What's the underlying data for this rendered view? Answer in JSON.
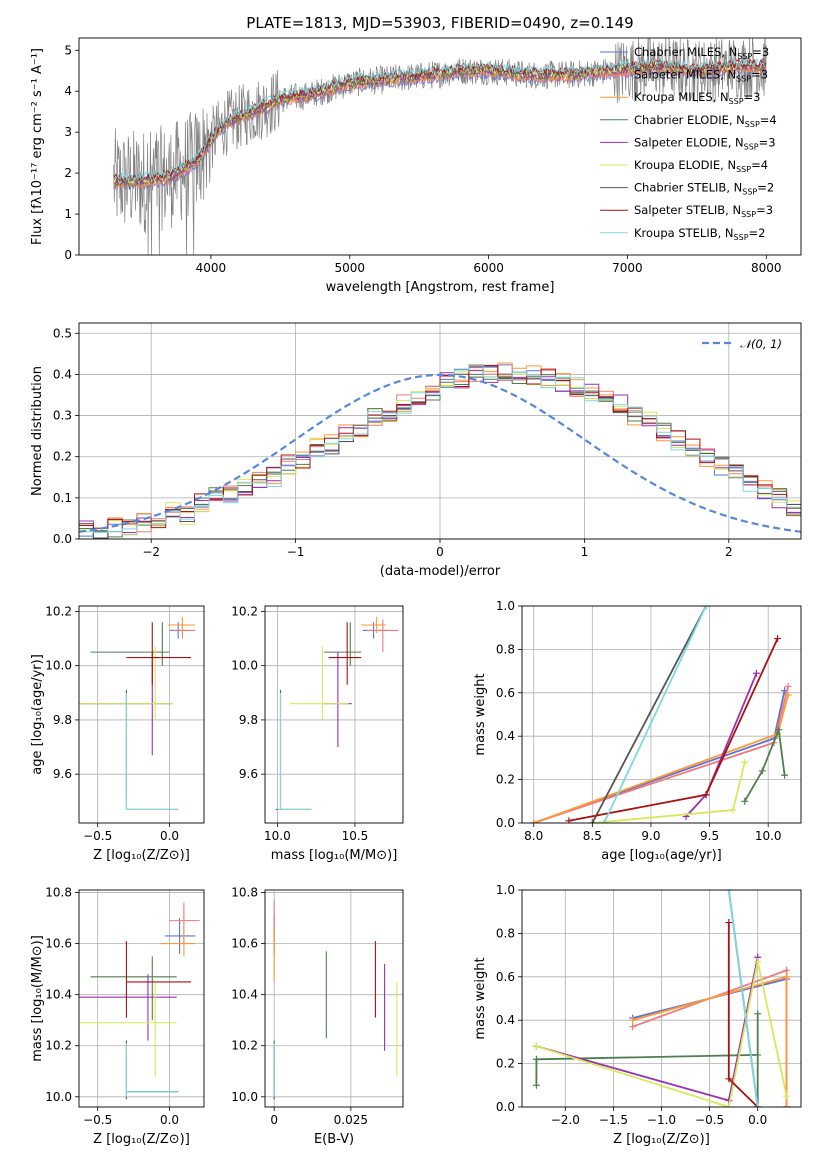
{
  "figure_title": "PLATE=1813, MJD=53903, FIBERID=0490, z=0.149",
  "colors": {
    "chab_miles": "#5b74d6",
    "salp_miles": "#f07a7a",
    "krou_miles": "#ff9933",
    "chab_elodie": "#4f7f4f",
    "salp_elodie": "#9b30b0",
    "krou_elodie": "#d9e85a",
    "chab_stelib": "#555555",
    "salp_stelib": "#aa1111",
    "krou_stelib": "#7fd8e0",
    "spectrum_data": "#808080",
    "gaussian": "#5588dd"
  },
  "chart_data": [
    {
      "id": "spectrum",
      "type": "line",
      "title": "PLATE=1813, MJD=53903, FIBERID=0490, z=0.149",
      "xlabel": "wavelength [Angstrom, rest frame]",
      "ylabel": "Flux [fλ10⁻¹⁷ erg cm⁻² s⁻¹ A⁻¹]",
      "xlim": [
        3050,
        8250
      ],
      "ylim": [
        0,
        5.3
      ],
      "xticks": [
        4000,
        5000,
        6000,
        7000,
        8000
      ],
      "yticks": [
        0,
        1,
        2,
        3,
        4,
        5
      ],
      "grid": false,
      "legend_position": "top-right",
      "continuum": {
        "x": [
          3300,
          3500,
          3700,
          3900,
          4000,
          4100,
          4300,
          4500,
          4700,
          5000,
          5300,
          5600,
          5800,
          6000,
          6300,
          6600,
          6900,
          7200,
          7500,
          7800,
          8000
        ],
        "y": [
          1.8,
          1.8,
          1.9,
          2.3,
          2.8,
          3.2,
          3.5,
          3.8,
          3.9,
          4.2,
          4.3,
          4.4,
          4.5,
          4.5,
          4.4,
          4.4,
          4.5,
          4.6,
          4.5,
          4.6,
          4.6
        ]
      },
      "series": [
        {
          "name": "Chabrier MILES, N",
          "sub": "SSP",
          "eq": "=3",
          "color_key": "chab_miles"
        },
        {
          "name": "Salpeter MILES, N",
          "sub": "SSP",
          "eq": "=3",
          "color_key": "salp_miles"
        },
        {
          "name": "Kroupa MILES, N",
          "sub": "SSP",
          "eq": "=3",
          "color_key": "krou_miles"
        },
        {
          "name": "Chabrier ELODIE, N",
          "sub": "SSP",
          "eq": "=4",
          "color_key": "chab_elodie"
        },
        {
          "name": "Salpeter ELODIE, N",
          "sub": "SSP",
          "eq": "=3",
          "color_key": "salp_elodie"
        },
        {
          "name": "Kroupa ELODIE, N",
          "sub": "SSP",
          "eq": "=4",
          "color_key": "krou_elodie"
        },
        {
          "name": "Chabrier STELIB, N",
          "sub": "SSP",
          "eq": "=2",
          "color_key": "chab_stelib"
        },
        {
          "name": "Salpeter STELIB, N",
          "sub": "SSP",
          "eq": "=3",
          "color_key": "salp_stelib"
        },
        {
          "name": "Kroupa STELIB, N",
          "sub": "SSP",
          "eq": "=2",
          "color_key": "krou_stelib"
        }
      ]
    },
    {
      "id": "residuals",
      "type": "line",
      "xlabel": "(data-model)/error",
      "ylabel": "Normed distribution",
      "xlim": [
        -2.5,
        2.5
      ],
      "ylim": [
        0,
        0.525
      ],
      "xticks": [
        -2,
        -1,
        0,
        1,
        2
      ],
      "yticks": [
        0,
        0.1,
        0.2,
        0.3,
        0.4,
        0.5
      ],
      "grid": true,
      "legend_position": "top-right",
      "gaussian_label": "𝒩(0, 1)",
      "bin_width": 0.1,
      "bin_start": -2.5,
      "hist_reference": [
        0.02,
        0.02,
        0.03,
        0.03,
        0.04,
        0.05,
        0.07,
        0.06,
        0.09,
        0.1,
        0.11,
        0.13,
        0.14,
        0.15,
        0.18,
        0.19,
        0.22,
        0.23,
        0.26,
        0.27,
        0.3,
        0.31,
        0.33,
        0.34,
        0.36,
        0.38,
        0.39,
        0.4,
        0.4,
        0.41,
        0.4,
        0.4,
        0.39,
        0.38,
        0.37,
        0.36,
        0.34,
        0.33,
        0.3,
        0.29,
        0.26,
        0.24,
        0.22,
        0.2,
        0.18,
        0.16,
        0.14,
        0.12,
        0.1,
        0.08
      ]
    },
    {
      "id": "age_vs_Z",
      "type": "scatter",
      "xlabel": "Z [log₁₀(Z/Z⊙)]",
      "ylabel": "age  [log₁₀(age/yr)]",
      "xlim": [
        -0.63,
        0.24
      ],
      "ylim": [
        9.42,
        10.22
      ],
      "xticks": [
        -0.5,
        0.0
      ],
      "yticks": [
        9.6,
        9.8,
        10.0,
        10.2
      ],
      "grid": true,
      "points": [
        {
          "c": "chab_miles",
          "x": 0.06,
          "y": 10.13,
          "xe": [
            0.0,
            0.12
          ],
          "ye": [
            10.1,
            10.16
          ]
        },
        {
          "c": "salp_miles",
          "x": 0.09,
          "y": 10.13,
          "xe": [
            0.02,
            0.18
          ],
          "ye": [
            10.1,
            10.17
          ]
        },
        {
          "c": "krou_miles",
          "x": 0.09,
          "y": 10.15,
          "xe": [
            -0.01,
            0.18
          ],
          "ye": [
            10.12,
            10.18
          ]
        },
        {
          "c": "chab_elodie",
          "x": -0.05,
          "y": 10.05,
          "xe": [
            -0.55,
            0.0
          ],
          "ye": [
            10.0,
            10.16
          ]
        },
        {
          "c": "salp_elodie",
          "x": -0.12,
          "y": 9.86,
          "xe": [
            -0.63,
            0.02
          ],
          "ye": [
            9.67,
            10.05
          ]
        },
        {
          "c": "krou_elodie",
          "x": -0.1,
          "y": 9.86,
          "xe": [
            -0.63,
            0.02
          ],
          "ye": [
            9.8,
            10.07
          ]
        },
        {
          "c": "chab_stelib",
          "x": -0.3,
          "y": 9.47,
          "xe": [
            -0.3,
            0.06
          ],
          "ye": [
            9.47,
            9.91
          ]
        },
        {
          "c": "salp_stelib",
          "x": -0.12,
          "y": 10.03,
          "xe": [
            -0.3,
            0.15
          ],
          "ye": [
            9.93,
            10.16
          ]
        },
        {
          "c": "krou_stelib",
          "x": -0.3,
          "y": 9.47,
          "xe": [
            -0.3,
            0.06
          ],
          "ye": [
            9.47,
            9.9
          ]
        }
      ]
    },
    {
      "id": "age_vs_mass",
      "type": "scatter",
      "xlabel": "mass [log₁₀(M/M⊙)]",
      "ylabel": "",
      "xlim": [
        9.92,
        10.81
      ],
      "ylim": [
        9.42,
        10.22
      ],
      "xticks": [
        10.0,
        10.5
      ],
      "yticks": [
        9.6,
        9.8,
        10.0,
        10.2
      ],
      "grid": true,
      "points": [
        {
          "c": "chab_miles",
          "x": 10.62,
          "y": 10.13,
          "xe": [
            10.55,
            10.72
          ],
          "ye": [
            10.1,
            10.16
          ]
        },
        {
          "c": "salp_miles",
          "x": 10.68,
          "y": 10.13,
          "xe": [
            10.58,
            10.78
          ],
          "ye": [
            10.05,
            10.17
          ]
        },
        {
          "c": "krou_miles",
          "x": 10.64,
          "y": 10.15,
          "xe": [
            10.54,
            10.7
          ],
          "ye": [
            10.12,
            10.18
          ]
        },
        {
          "c": "chab_elodie",
          "x": 10.47,
          "y": 10.05,
          "xe": [
            10.3,
            10.54
          ],
          "ye": [
            10.0,
            10.16
          ]
        },
        {
          "c": "salp_elodie",
          "x": 10.39,
          "y": 9.86,
          "xe": [
            10.3,
            10.48
          ],
          "ye": [
            9.7,
            10.05
          ]
        },
        {
          "c": "krou_elodie",
          "x": 10.29,
          "y": 9.86,
          "xe": [
            10.08,
            10.46
          ],
          "ye": [
            9.8,
            10.07
          ]
        },
        {
          "c": "chab_stelib",
          "x": 10.02,
          "y": 9.47,
          "xe": [
            9.99,
            10.22
          ],
          "ye": [
            9.47,
            9.91
          ]
        },
        {
          "c": "salp_stelib",
          "x": 10.45,
          "y": 10.03,
          "xe": [
            10.33,
            10.54
          ],
          "ye": [
            9.93,
            10.16
          ]
        },
        {
          "c": "krou_stelib",
          "x": 10.02,
          "y": 9.47,
          "xe": [
            10.0,
            10.22
          ],
          "ye": [
            9.47,
            9.9
          ]
        }
      ]
    },
    {
      "id": "weight_vs_age",
      "type": "line",
      "xlabel": "age  [log₁₀(age/yr)]",
      "ylabel": "mass weight",
      "xlim": [
        7.9,
        10.28
      ],
      "ylim": [
        0,
        1.0
      ],
      "xticks": [
        8.0,
        8.5,
        9.0,
        9.5,
        10.0
      ],
      "yticks": [
        0.0,
        0.2,
        0.4,
        0.6,
        0.8,
        1.0
      ],
      "grid": true,
      "series": [
        {
          "c": "chab_miles",
          "x": [
            8.0,
            10.05,
            10.14
          ],
          "y": [
            0.0,
            0.39,
            0.61
          ]
        },
        {
          "c": "salp_miles",
          "x": [
            8.0,
            10.05,
            10.17
          ],
          "y": [
            0.0,
            0.37,
            0.63
          ]
        },
        {
          "c": "krou_miles",
          "x": [
            8.0,
            10.08,
            10.17
          ],
          "y": [
            0.0,
            0.41,
            0.59
          ]
        },
        {
          "c": "chab_elodie",
          "x": [
            9.8,
            9.95,
            10.09,
            10.14
          ],
          "y": [
            0.1,
            0.24,
            0.43,
            0.22
          ]
        },
        {
          "c": "salp_elodie",
          "x": [
            9.3,
            9.47,
            9.9
          ],
          "y": [
            0.03,
            0.13,
            0.69
          ]
        },
        {
          "c": "krou_elodie",
          "x": [
            8.5,
            9.7,
            9.8
          ],
          "y": [
            0.0,
            0.06,
            0.28
          ]
        },
        {
          "c": "chab_stelib",
          "x": [
            8.5,
            9.47
          ],
          "y": [
            0.0,
            1.0
          ]
        },
        {
          "c": "salp_stelib",
          "x": [
            8.3,
            9.47,
            10.08
          ],
          "y": [
            0.01,
            0.13,
            0.85
          ]
        },
        {
          "c": "krou_stelib",
          "x": [
            8.6,
            9.47
          ],
          "y": [
            0.0,
            1.0
          ]
        }
      ]
    },
    {
      "id": "mass_vs_Z",
      "type": "scatter",
      "xlabel": "Z [log₁₀(Z/Z⊙)]",
      "ylabel": "mass [log₁₀(M/M⊙)]",
      "xlim": [
        -0.63,
        0.24
      ],
      "ylim": [
        9.96,
        10.81
      ],
      "xticks": [
        -0.5,
        0.0
      ],
      "yticks": [
        10.0,
        10.2,
        10.4,
        10.6,
        10.8
      ],
      "grid": true,
      "points": [
        {
          "c": "chab_miles",
          "x": 0.07,
          "y": 10.63,
          "xe": [
            -0.03,
            0.18
          ],
          "ye": [
            10.56,
            10.7
          ]
        },
        {
          "c": "salp_miles",
          "x": 0.1,
          "y": 10.69,
          "xe": [
            0.0,
            0.21
          ],
          "ye": [
            10.6,
            10.76
          ]
        },
        {
          "c": "krou_miles",
          "x": 0.1,
          "y": 10.6,
          "xe": [
            -0.06,
            0.18
          ],
          "ye": [
            10.55,
            10.66
          ]
        },
        {
          "c": "chab_elodie",
          "x": -0.12,
          "y": 10.47,
          "xe": [
            -0.55,
            0.05
          ],
          "ye": [
            10.3,
            10.55
          ]
        },
        {
          "c": "salp_elodie",
          "x": -0.15,
          "y": 10.39,
          "xe": [
            -0.63,
            0.05
          ],
          "ye": [
            10.22,
            10.48
          ]
        },
        {
          "c": "krou_elodie",
          "x": -0.1,
          "y": 10.29,
          "xe": [
            -0.63,
            0.05
          ],
          "ye": [
            10.08,
            10.45
          ]
        },
        {
          "c": "chab_stelib",
          "x": -0.3,
          "y": 10.02,
          "xe": [
            -0.3,
            0.06
          ],
          "ye": [
            9.99,
            10.22
          ]
        },
        {
          "c": "salp_stelib",
          "x": -0.3,
          "y": 10.45,
          "xe": [
            -0.3,
            0.15
          ],
          "ye": [
            10.31,
            10.61
          ]
        },
        {
          "c": "krou_stelib",
          "x": -0.3,
          "y": 10.02,
          "xe": [
            -0.3,
            0.06
          ],
          "ye": [
            10.0,
            10.21
          ]
        }
      ]
    },
    {
      "id": "mass_vs_EBV",
      "type": "scatter",
      "xlabel": "E(B-V)",
      "ylabel": "",
      "xlim": [
        -0.003,
        0.042
      ],
      "ylim": [
        9.96,
        10.81
      ],
      "xticks": [
        0.0,
        0.025
      ],
      "yticks": [
        10.0,
        10.2,
        10.4,
        10.6,
        10.8
      ],
      "grid": true,
      "points": [
        {
          "c": "chab_miles",
          "x": 0.0,
          "y": 10.63,
          "xe": [
            0.0,
            0.0
          ],
          "ye": [
            10.56,
            10.7
          ]
        },
        {
          "c": "salp_miles",
          "x": 0.0,
          "y": 10.69,
          "xe": [
            0.0,
            0.0
          ],
          "ye": [
            10.58,
            10.77
          ]
        },
        {
          "c": "krou_miles",
          "x": 0.0,
          "y": 10.6,
          "xe": [
            0.0,
            0.0
          ],
          "ye": [
            10.45,
            10.66
          ]
        },
        {
          "c": "chab_elodie",
          "x": 0.017,
          "y": 10.4,
          "xe": [
            0.017,
            0.017
          ],
          "ye": [
            10.23,
            10.57
          ]
        },
        {
          "c": "salp_elodie",
          "x": 0.036,
          "y": 10.35,
          "xe": [
            0.036,
            0.036
          ],
          "ye": [
            10.18,
            10.52
          ]
        },
        {
          "c": "krou_elodie",
          "x": 0.04,
          "y": 10.27,
          "xe": [
            0.04,
            0.04
          ],
          "ye": [
            10.08,
            10.45
          ]
        },
        {
          "c": "chab_stelib",
          "x": 0.0,
          "y": 10.1,
          "xe": [
            0.0,
            0.0
          ],
          "ye": [
            9.99,
            10.22
          ]
        },
        {
          "c": "salp_stelib",
          "x": 0.033,
          "y": 10.46,
          "xe": [
            0.033,
            0.033
          ],
          "ye": [
            10.31,
            10.61
          ]
        },
        {
          "c": "krou_stelib",
          "x": 0.0,
          "y": 10.1,
          "xe": [
            0.0,
            0.0
          ],
          "ye": [
            10.0,
            10.21
          ]
        }
      ]
    },
    {
      "id": "weight_vs_Z",
      "type": "line",
      "xlabel": "Z [log₁₀(Z/Z⊙)]",
      "ylabel": "mass weight",
      "xlim": [
        -2.45,
        0.45
      ],
      "ylim": [
        0,
        1.0
      ],
      "xticks": [
        -2.0,
        -1.5,
        -1.0,
        -0.5,
        0.0
      ],
      "yticks": [
        0.0,
        0.2,
        0.4,
        0.6,
        0.8,
        1.0
      ],
      "grid": true,
      "series": [
        {
          "c": "chab_miles",
          "x": [
            -1.3,
            0.3,
            0.3
          ],
          "y": [
            0.41,
            0.59,
            0.0
          ]
        },
        {
          "c": "salp_miles",
          "x": [
            -1.3,
            0.3,
            0.3
          ],
          "y": [
            0.37,
            0.63,
            0.0
          ]
        },
        {
          "c": "krou_miles",
          "x": [
            -1.3,
            0.3,
            0.3
          ],
          "y": [
            0.4,
            0.6,
            0.0
          ]
        },
        {
          "c": "chab_elodie",
          "x": [
            -2.3,
            -2.3,
            0.0,
            0.0,
            0.0
          ],
          "y": [
            0.1,
            0.22,
            0.24,
            0.43,
            0.0
          ]
        },
        {
          "c": "salp_elodie",
          "x": [
            -2.3,
            -0.3,
            0.0
          ],
          "y": [
            0.28,
            0.03,
            0.69
          ]
        },
        {
          "c": "krou_elodie",
          "x": [
            -2.3,
            -0.3,
            0.0,
            0.3
          ],
          "y": [
            0.28,
            0.0,
            0.67,
            0.05
          ]
        },
        {
          "c": "chab_stelib",
          "x": [
            -0.3,
            0.0
          ],
          "y": [
            1.0,
            0.0
          ]
        },
        {
          "c": "salp_stelib",
          "x": [
            -0.3,
            -0.3,
            0.0
          ],
          "y": [
            0.85,
            0.13,
            0.0
          ]
        },
        {
          "c": "krou_stelib",
          "x": [
            -0.3,
            0.0
          ],
          "y": [
            1.0,
            0.0
          ]
        }
      ]
    }
  ]
}
